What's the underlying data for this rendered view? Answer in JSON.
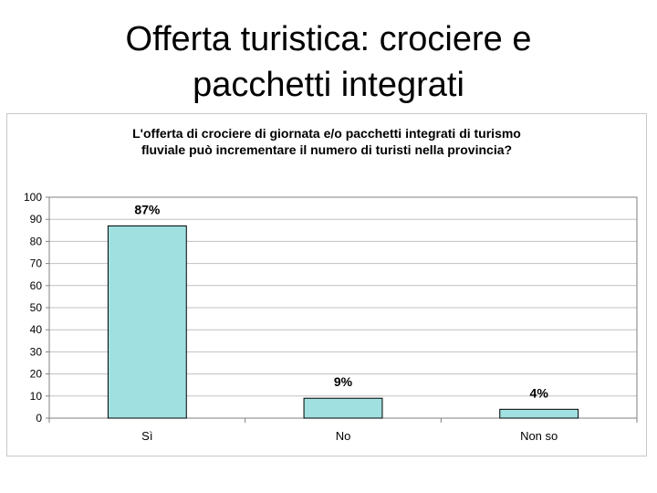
{
  "slide": {
    "title_line1": "Offerta turistica: crociere e",
    "title_line2": "pacchetti integrati"
  },
  "chart_data": {
    "type": "bar",
    "title_line1": "L'offerta di crociere di giornata e/o pacchetti integrati di turismo",
    "title_line2": "fluviale può incrementare il numero di turisti nella provincia?",
    "categories": [
      "Sì",
      "No",
      "Non so"
    ],
    "values": [
      87,
      9,
      4
    ],
    "data_labels": [
      "87%",
      "9%",
      "4%"
    ],
    "ylim": [
      0,
      100
    ],
    "yticks": [
      0,
      10,
      20,
      30,
      40,
      50,
      60,
      70,
      80,
      90,
      100
    ],
    "grid": true,
    "legend": "none",
    "colors": {
      "bar": "#a0e0e0",
      "bar_border": "#000000",
      "grid": "#c0c0c0",
      "axis": "#808080"
    }
  }
}
